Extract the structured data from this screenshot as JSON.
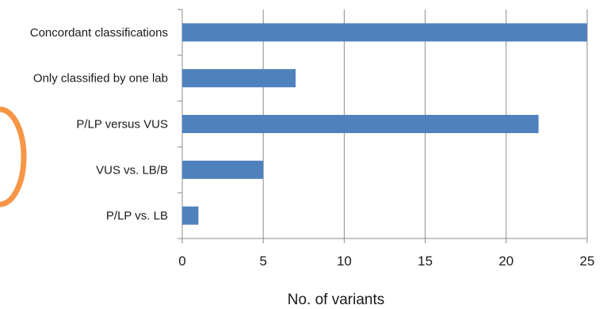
{
  "chart_data": {
    "type": "bar",
    "orientation": "horizontal",
    "categories": [
      "Concordant classifications",
      "Only classified by one lab",
      "P/LP versus VUS",
      "VUS vs. LB/B",
      "P/LP vs. LB"
    ],
    "values": [
      25,
      7,
      22,
      5,
      1
    ],
    "xlabel": "No. of variants",
    "ylabel": "",
    "xlim": [
      0,
      25
    ],
    "x_ticks": [
      0,
      5,
      10,
      15,
      20,
      25
    ],
    "grid": "vertical",
    "legend": "none",
    "bar_color": "#4f81bd",
    "decoration_color": "#f79646"
  }
}
